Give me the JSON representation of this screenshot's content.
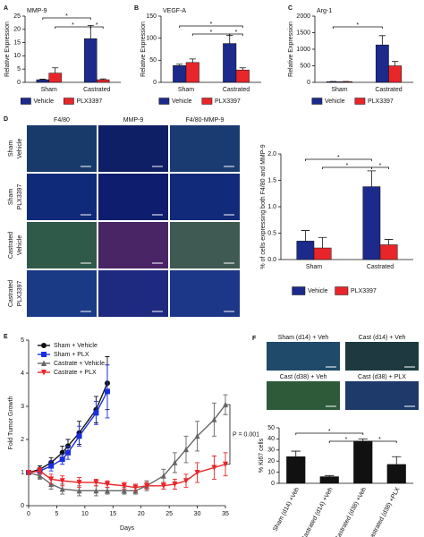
{
  "panel_labels": [
    "A",
    "B",
    "C",
    "D",
    "E",
    "F"
  ],
  "panel_d_images": {
    "columns": [
      "F4/80",
      "MMP-9",
      "F4/80-MMP-9"
    ],
    "rows": [
      [
        "Sham",
        "Vehicle"
      ],
      [
        "Sham",
        "PLX3397"
      ],
      [
        "Castrated",
        "Vehicle"
      ],
      [
        "Castrated",
        "PLX3397"
      ]
    ]
  },
  "panel_f_images": {
    "labels": [
      "Sham (d14) + Veh",
      "Cast (d14) + Veh",
      "Cast (d38) + Veh",
      "Cast (d38) + PLX"
    ]
  },
  "chart_data": [
    {
      "type": "bar",
      "title": "MMP-9",
      "y_label": "Relative Expression",
      "categories": [
        "Sham",
        "Castrated"
      ],
      "series": [
        {
          "name": "Vehicle",
          "color": "#1c2a8c",
          "values": [
            1,
            16.5
          ],
          "errors": [
            0.2,
            5
          ]
        },
        {
          "name": "PLX3397",
          "color": "#e8262a",
          "values": [
            3.5,
            1
          ],
          "errors": [
            2,
            0.3
          ]
        }
      ],
      "ylim": [
        0,
        25
      ],
      "yticks": [
        0,
        5,
        10,
        15,
        20,
        25
      ],
      "annotations": [
        "*",
        "*",
        "*"
      ]
    },
    {
      "type": "bar",
      "title": "VEGF-A",
      "y_label": "Relative Expression",
      "categories": [
        "Sham",
        "Castrated"
      ],
      "series": [
        {
          "name": "Vehicle",
          "color": "#1c2a8c",
          "values": [
            38,
            88
          ],
          "errors": [
            3,
            18
          ]
        },
        {
          "name": "PLX3397",
          "color": "#e8262a",
          "values": [
            45,
            28
          ],
          "errors": [
            8,
            5
          ]
        }
      ],
      "ylim": [
        0,
        150
      ],
      "yticks": [
        0,
        50,
        100,
        150
      ],
      "annotations": [
        "*",
        "*",
        "*"
      ]
    },
    {
      "type": "bar",
      "title": "Arg-1",
      "y_label": "Relative Expression",
      "categories": [
        "Sham",
        "Castrated"
      ],
      "series": [
        {
          "name": "Vehicle",
          "color": "#1c2a8c",
          "values": [
            20,
            1130
          ],
          "errors": [
            5,
            280
          ]
        },
        {
          "name": "PLX3397",
          "color": "#e8262a",
          "values": [
            20,
            500
          ],
          "errors": [
            5,
            130
          ]
        }
      ],
      "ylim": [
        0,
        2000
      ],
      "yticks": [
        0,
        500,
        1000,
        1500,
        2000
      ],
      "annotations": [
        "*"
      ]
    },
    {
      "type": "bar",
      "y_label": "% of cells expressing both F4/80 and MMP-9",
      "categories": [
        "Sham",
        "Castrated"
      ],
      "series": [
        {
          "name": "Vehicle",
          "color": "#1c2a8c",
          "values": [
            0.35,
            1.38
          ],
          "errors": [
            0.2,
            0.3
          ]
        },
        {
          "name": "PLX3397",
          "color": "#e8262a",
          "values": [
            0.22,
            0.28
          ],
          "errors": [
            0.2,
            0.1
          ]
        }
      ],
      "ylim": [
        0,
        2
      ],
      "yticks": [
        {
          "value": 0,
          "label": "0.0"
        },
        0.5,
        {
          "value": 1,
          "label": "1.0"
        },
        1.5,
        {
          "value": 2,
          "label": "2.0"
        }
      ],
      "annotations": [
        "*",
        "*",
        "*"
      ]
    },
    {
      "type": "line",
      "y_label": "Fold Tumor Growth",
      "x_label": "Days",
      "legend": "upper left",
      "xlim": [
        0,
        35
      ],
      "xticks": [
        0,
        5,
        10,
        15,
        20,
        25,
        30,
        35
      ],
      "ylim": [
        0,
        5
      ],
      "yticks": [
        0,
        1,
        2,
        3,
        4,
        5
      ],
      "annotation": "P = 0.001",
      "series": [
        {
          "name": "Sham + Vehicle",
          "color": "#111111",
          "marker": "circle",
          "x": [
            0,
            2,
            4,
            6,
            7,
            9,
            12,
            14
          ],
          "values": [
            1,
            1.1,
            1.3,
            1.6,
            1.8,
            2.2,
            2.9,
            3.7
          ],
          "errors": [
            0.05,
            0.1,
            0.15,
            0.2,
            0.2,
            0.35,
            0.4,
            0.8
          ]
        },
        {
          "name": "Sham + PLX",
          "color": "#1a2ee0",
          "marker": "square",
          "x": [
            0,
            2,
            4,
            6,
            7,
            9,
            12,
            14
          ],
          "values": [
            1,
            1.05,
            1.2,
            1.4,
            1.6,
            2.1,
            2.8,
            3.45
          ],
          "errors": [
            0.05,
            0.1,
            0.15,
            0.15,
            0.2,
            0.3,
            0.35,
            0.8
          ]
        },
        {
          "name": "Castrate + Vehicle",
          "color": "#666666",
          "marker": "triangle-up",
          "x": [
            0,
            2,
            4,
            6,
            9,
            12,
            14,
            17,
            19,
            21,
            24,
            26,
            28,
            30,
            33,
            35
          ],
          "values": [
            1,
            0.9,
            0.65,
            0.5,
            0.45,
            0.45,
            0.45,
            0.45,
            0.45,
            0.6,
            0.9,
            1.3,
            1.7,
            2.1,
            2.6,
            3.05
          ],
          "errors": [
            0.05,
            0.1,
            0.15,
            0.15,
            0.15,
            0.15,
            0.1,
            0.1,
            0.1,
            0.15,
            0.2,
            0.3,
            0.4,
            0.45,
            0.5,
            0.3
          ]
        },
        {
          "name": "Castrate + PLX",
          "color": "#e8262a",
          "marker": "triangle-down",
          "x": [
            0,
            2,
            4,
            6,
            9,
            12,
            14,
            17,
            19,
            21,
            24,
            26,
            28,
            30,
            33,
            35
          ],
          "values": [
            1,
            1.05,
            0.8,
            0.75,
            0.7,
            0.7,
            0.65,
            0.6,
            0.55,
            0.6,
            0.6,
            0.65,
            0.75,
            1,
            1.15,
            1.25
          ],
          "errors": [
            0.05,
            0.1,
            0.15,
            0.15,
            0.15,
            0.1,
            0.1,
            0.1,
            0.1,
            0.1,
            0.1,
            0.15,
            0.2,
            0.3,
            0.35,
            0.35
          ]
        }
      ]
    },
    {
      "type": "bar",
      "y_label": "% Ki67 cells",
      "categories": [
        "Sham (d14) +Veh",
        "Castrated (d14) +Veh",
        "Castrated (d38) +Veh",
        "Castrated (d38) +PLX"
      ],
      "values": [
        24,
        6,
        38,
        17
      ],
      "errors": [
        5,
        1,
        2,
        7
      ],
      "color": "#111111",
      "ylim": [
        0,
        50
      ],
      "yticks": [
        0,
        10,
        20,
        30,
        40,
        50
      ],
      "annotations": [
        "*",
        "*",
        "*"
      ]
    }
  ]
}
